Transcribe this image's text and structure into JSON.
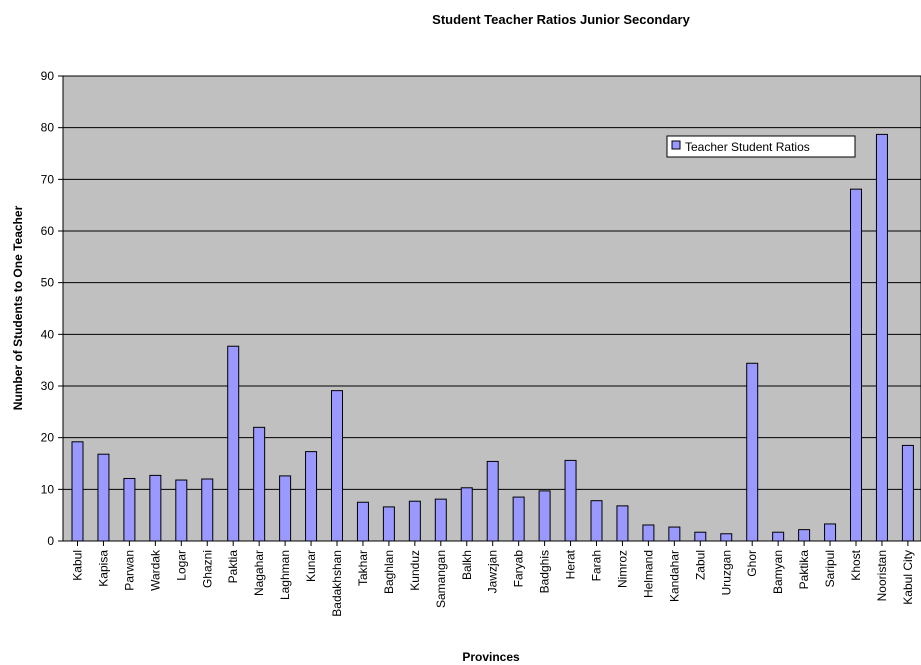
{
  "chart_data": {
    "type": "bar",
    "title": "Student Teacher Ratios Junior Secondary",
    "xlabel": "Provinces",
    "ylabel": "Number of Students to One Teacher",
    "ylim": [
      0,
      90
    ],
    "yticks": [
      0,
      10,
      20,
      30,
      40,
      50,
      60,
      70,
      80,
      90
    ],
    "grid": true,
    "legend_position": "top-right",
    "colors": {
      "bar_fill": "#9999ff",
      "bar_stroke": "#000000",
      "plot_background": "#c0c0c0"
    },
    "categories": [
      "Kabul",
      "Kapisa",
      "Parwan",
      "Wardak",
      "Logar",
      "Ghazni",
      "Paktia",
      "Nagahar",
      "Laghman",
      "Kunar",
      "Badakhshan",
      "Takhar",
      "Baghlan",
      "Kunduz",
      "Samangan",
      "Balkh",
      "Jawzjan",
      "Faryab",
      "Badghis",
      "Herat",
      "Farah",
      "Nimroz",
      "Helmand",
      "Kandahar",
      "Zabul",
      "Uruzgan",
      "Ghor",
      "Bamyan",
      "Paktika",
      "Saripul",
      "Khost",
      "Nooristan",
      "Kabul City"
    ],
    "series": [
      {
        "name": "Teacher Student Ratios",
        "values": [
          19.2,
          16.8,
          12.1,
          12.7,
          11.8,
          12.0,
          37.7,
          22.0,
          12.6,
          17.3,
          29.1,
          7.5,
          6.6,
          7.7,
          8.1,
          10.3,
          15.4,
          8.5,
          9.7,
          15.6,
          7.8,
          6.8,
          3.1,
          2.7,
          1.7,
          1.4,
          34.4,
          1.7,
          2.2,
          3.3,
          68.1,
          78.7,
          18.5
        ]
      }
    ]
  }
}
